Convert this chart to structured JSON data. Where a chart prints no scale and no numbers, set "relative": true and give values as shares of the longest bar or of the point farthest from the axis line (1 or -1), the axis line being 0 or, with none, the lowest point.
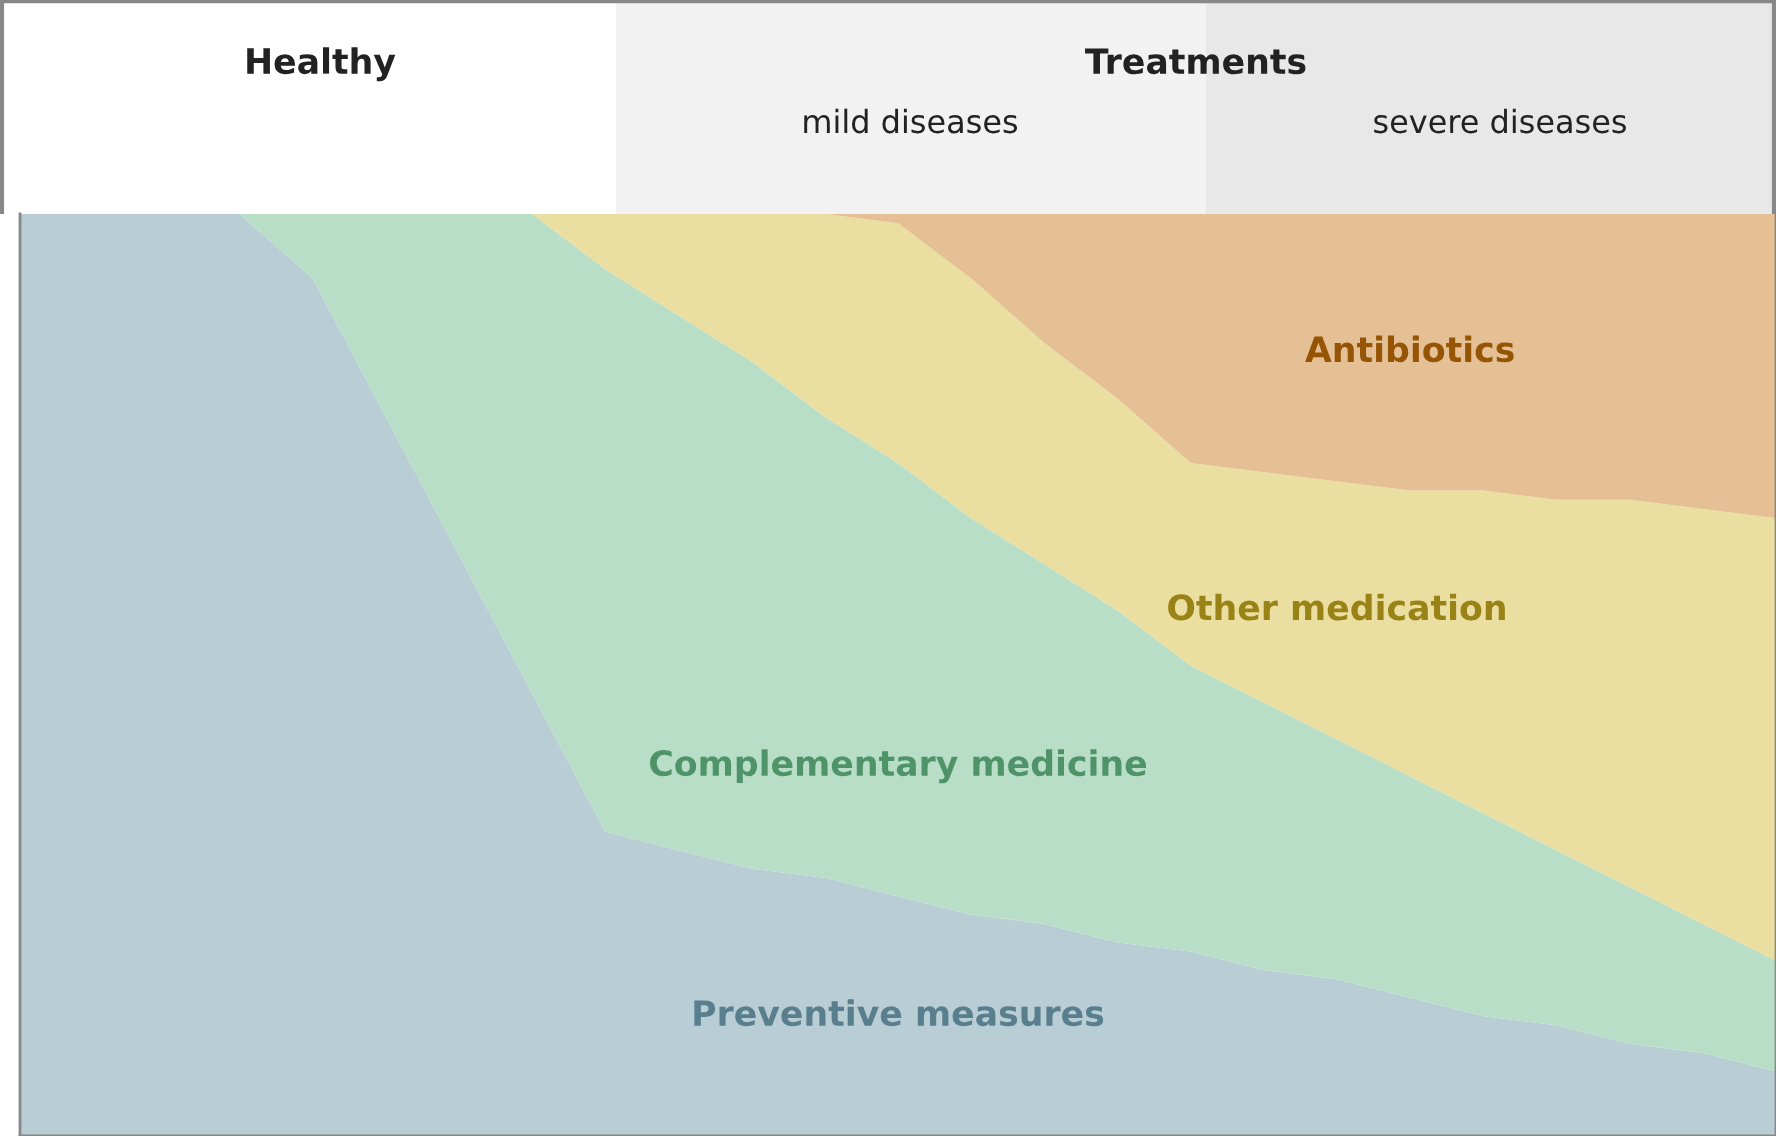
{
  "chart_data": {
    "type": "area",
    "stacked": true,
    "relative": true,
    "legend": false,
    "grid": false,
    "categories": [
      null,
      null,
      null,
      null,
      null,
      null,
      null,
      null,
      null,
      null,
      null,
      null,
      null,
      null,
      null,
      null,
      null,
      null,
      null,
      null,
      null,
      null,
      null,
      null,
      null
    ],
    "series": [
      {
        "name": "Preventive measures",
        "color": "#b5cad3",
        "values": [
          1,
          1,
          1,
          1,
          0.93,
          0.78,
          0.63,
          0.48,
          0.33,
          0.31,
          0.29,
          0.28,
          0.26,
          0.24,
          0.23,
          0.21,
          0.2,
          0.18,
          0.17,
          0.15,
          0.13,
          0.12,
          0.1,
          0.09,
          0.07
        ]
      },
      {
        "name": "Complementary medicine",
        "color": "#b5dcc4",
        "values": [
          0,
          0,
          0,
          0,
          0.07,
          0.22,
          0.37,
          0.52,
          0.61,
          0.58,
          0.55,
          0.5,
          0.47,
          0.43,
          0.39,
          0.36,
          0.31,
          0.29,
          0.26,
          0.24,
          0.22,
          0.19,
          0.17,
          0.14,
          0.12
        ]
      },
      {
        "name": "Other medication",
        "color": "#e9dc9c",
        "values": [
          0,
          0,
          0,
          0,
          0,
          0,
          0,
          0,
          0.06,
          0.11,
          0.16,
          0.22,
          0.26,
          0.26,
          0.24,
          0.23,
          0.22,
          0.25,
          0.28,
          0.31,
          0.35,
          0.38,
          0.42,
          0.45,
          0.48
        ]
      },
      {
        "name": "Antibiotics",
        "color": "#e3bd8e",
        "values": [
          0,
          0,
          0,
          0,
          0,
          0,
          0,
          0,
          0,
          0,
          0,
          0,
          0.01,
          0.07,
          0.14,
          0.2,
          0.27,
          0.28,
          0.29,
          0.3,
          0.3,
          0.31,
          0.31,
          0.32,
          0.33
        ]
      }
    ],
    "annotations": [
      "Healthy",
      "Treatments",
      "mild diseases",
      "severe diseases"
    ]
  }
}
